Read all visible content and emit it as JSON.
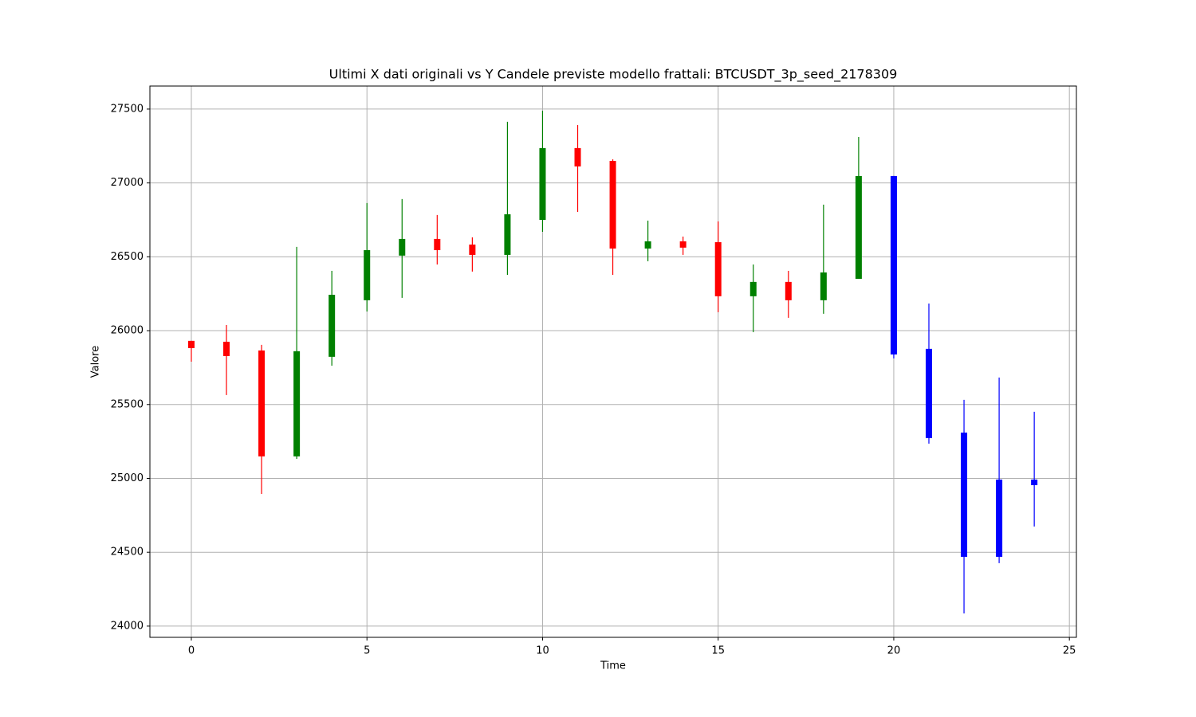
{
  "chart_data": {
    "type": "candlestick",
    "title": "Ultimi X dati originali vs Y Candele previste modello frattali: BTCUSDT_3p_seed_2178309",
    "x_label": "Time",
    "y_label": "Valore",
    "x": [
      0,
      1,
      2,
      3,
      4,
      5,
      6,
      7,
      8,
      9,
      10,
      11,
      12,
      13,
      14,
      15,
      16,
      17,
      18,
      19,
      20,
      21,
      22,
      23,
      24
    ],
    "open": [
      25931,
      25925,
      25866,
      25149,
      25823,
      26206,
      26508,
      26621,
      26583,
      26513,
      26750,
      27236,
      27149,
      26556,
      26605,
      26599,
      26233,
      26330,
      26206,
      26351,
      27047,
      25877,
      25310,
      24469,
      24992
    ],
    "high": [
      25931,
      26038,
      25904,
      26567,
      26405,
      26864,
      26891,
      26783,
      26632,
      27414,
      27489,
      27392,
      27160,
      26745,
      26637,
      26740,
      26448,
      26405,
      26853,
      27311,
      27047,
      26184,
      25532,
      25683,
      25451
    ],
    "low": [
      25790,
      25564,
      24895,
      25132,
      25763,
      26130,
      26222,
      26448,
      26400,
      26378,
      26669,
      26804,
      26378,
      26470,
      26513,
      26125,
      25990,
      26087,
      26114,
      26351,
      25812,
      25235,
      24086,
      24426,
      24674
    ],
    "close": [
      25882,
      25828,
      25149,
      25861,
      26243,
      26545,
      26621,
      26545,
      26513,
      26788,
      27236,
      27112,
      26556,
      26605,
      26562,
      26233,
      26330,
      26206,
      26394,
      27047,
      25839,
      25273,
      24469,
      24992,
      24954
    ],
    "colors": [
      "red",
      "red",
      "red",
      "green",
      "green",
      "green",
      "green",
      "red",
      "red",
      "green",
      "green",
      "red",
      "red",
      "green",
      "red",
      "red",
      "green",
      "red",
      "green",
      "green",
      "blue",
      "blue",
      "blue",
      "blue",
      "blue"
    ],
    "xlim": [
      -1.18,
      25.2
    ],
    "ylim": [
      23924,
      27656
    ],
    "xticks": [
      0,
      5,
      10,
      15,
      20,
      25
    ],
    "yticks": [
      24000,
      24500,
      25000,
      25500,
      26000,
      26500,
      27000,
      27500
    ],
    "grid": true
  }
}
